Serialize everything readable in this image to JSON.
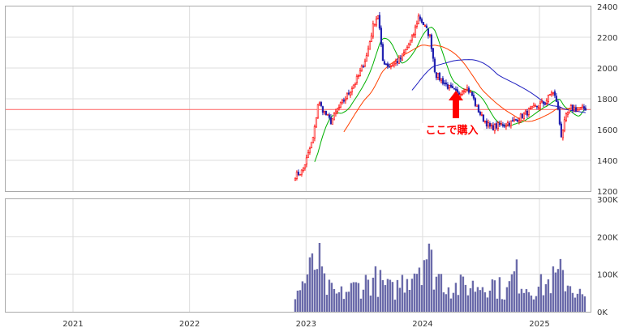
{
  "chart_data": [
    {
      "type": "candlestick",
      "panel": "price",
      "ylim": [
        1200,
        2400
      ],
      "y_ticks": [
        "1200",
        "1400",
        "1600",
        "1800",
        "2000",
        "2200",
        "2400"
      ],
      "reference_line": 1730,
      "grid": true,
      "colors": {
        "up": "#ff0000",
        "down": "#2020b0",
        "ma_short": "#00b000",
        "ma_mid": "#ff4000",
        "ma_long": "#2020c0",
        "ref": "#ff6060"
      },
      "price_keyframes": [
        [
          "2022-11-28",
          1300
        ],
        [
          "2022-12-20",
          1330
        ],
        [
          "2023-01-05",
          1420
        ],
        [
          "2023-01-25",
          1560
        ],
        [
          "2023-02-08",
          1780
        ],
        [
          "2023-02-25",
          1720
        ],
        [
          "2023-03-20",
          1650
        ],
        [
          "2023-04-10",
          1730
        ],
        [
          "2023-05-10",
          1820
        ],
        [
          "2023-06-15",
          1950
        ],
        [
          "2023-07-10",
          2080
        ],
        [
          "2023-08-01",
          2290
        ],
        [
          "2023-08-15",
          2350
        ],
        [
          "2023-08-28",
          2050
        ],
        [
          "2023-09-20",
          2010
        ],
        [
          "2023-10-25",
          2060
        ],
        [
          "2023-12-01",
          2200
        ],
        [
          "2023-12-20",
          2340
        ],
        [
          "2024-01-10",
          2260
        ],
        [
          "2024-01-25",
          2200
        ],
        [
          "2024-02-10",
          1960
        ],
        [
          "2024-03-01",
          1920
        ],
        [
          "2024-03-25",
          1870
        ],
        [
          "2024-04-20",
          1830
        ],
        [
          "2024-05-15",
          1880
        ],
        [
          "2024-06-05",
          1820
        ],
        [
          "2024-06-15",
          1760
        ],
        [
          "2024-07-05",
          1680
        ],
        [
          "2024-08-01",
          1610
        ],
        [
          "2024-09-01",
          1630
        ],
        [
          "2024-10-10",
          1650
        ],
        [
          "2024-11-15",
          1700
        ],
        [
          "2024-12-15",
          1740
        ],
        [
          "2025-01-20",
          1780
        ],
        [
          "2025-02-10",
          1850
        ],
        [
          "2025-02-25",
          1780
        ],
        [
          "2025-03-10",
          1560
        ],
        [
          "2025-03-25",
          1680
        ],
        [
          "2025-04-10",
          1740
        ],
        [
          "2025-05-01",
          1730
        ],
        [
          "2025-05-30",
          1740
        ]
      ],
      "annotation": {
        "text": "ここで購入",
        "date": "2024-03-05",
        "arrow": "up"
      }
    },
    {
      "type": "bar",
      "panel": "volume",
      "ylim": [
        0,
        300000
      ],
      "y_ticks": [
        "0K",
        "100K",
        "200K",
        "300K"
      ],
      "x_ticks": [
        "2021",
        "2022",
        "2023",
        "2024",
        "2025"
      ],
      "color": "#6a6aaa",
      "volume_peaks": [
        [
          "2022-11-28",
          60000
        ],
        [
          "2023-01-05",
          130000
        ],
        [
          "2023-02-08",
          190000
        ],
        [
          "2023-03-01",
          90000
        ],
        [
          "2023-04-10",
          60000
        ],
        [
          "2023-08-01",
          120000
        ],
        [
          "2023-10-01",
          75000
        ],
        [
          "2023-12-20",
          180000
        ],
        [
          "2024-01-10",
          220000
        ],
        [
          "2024-02-10",
          140000
        ],
        [
          "2024-04-01",
          90000
        ],
        [
          "2024-06-15",
          95000
        ],
        [
          "2024-08-01",
          110000
        ],
        [
          "2024-09-20",
          70000
        ],
        [
          "2024-10-15",
          140000
        ],
        [
          "2024-12-01",
          85000
        ],
        [
          "2025-01-15",
          95000
        ],
        [
          "2025-03-10",
          135000
        ],
        [
          "2025-04-15",
          90000
        ],
        [
          "2025-05-30",
          40000
        ]
      ]
    }
  ]
}
